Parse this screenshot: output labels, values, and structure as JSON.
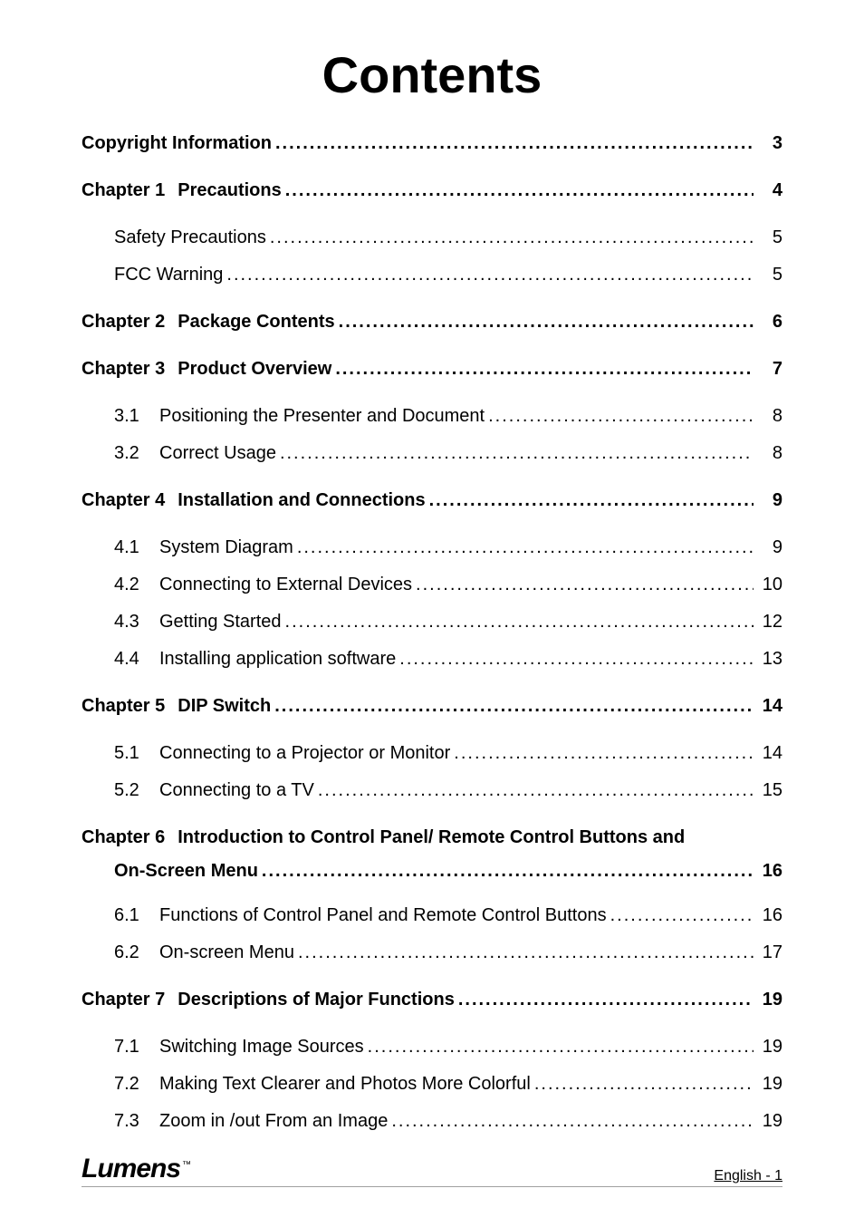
{
  "title": "Contents",
  "footer": {
    "logo": "Lumens",
    "trademark": "™",
    "page_label": "English - 1"
  },
  "typography": {
    "title_fontsize": 56,
    "body_fontsize": 20,
    "logo_fontsize": 30
  },
  "colors": {
    "background": "#ffffff",
    "text": "#000000",
    "rule": "#a0a0a0"
  },
  "toc": [
    {
      "level": 0,
      "bold": true,
      "num": "",
      "label": "Copyright Information",
      "page": "3"
    },
    {
      "level": 0,
      "bold": true,
      "num": "Chapter 1",
      "label": "Precautions",
      "page": "4",
      "grp": true
    },
    {
      "level": 1,
      "bold": false,
      "num": "",
      "label": "Safety Precautions",
      "page": "5",
      "grp": true
    },
    {
      "level": 1,
      "bold": false,
      "num": "",
      "label": "FCC Warning",
      "page": "5"
    },
    {
      "level": 0,
      "bold": true,
      "num": "Chapter 2",
      "label": "Package Contents",
      "page": "6",
      "grp": true
    },
    {
      "level": 0,
      "bold": true,
      "num": "Chapter 3",
      "label": "Product Overview",
      "page": "7",
      "grp": true
    },
    {
      "level": 2,
      "bold": false,
      "num": "3.1",
      "label": "Positioning the Presenter and Document",
      "page": "8",
      "grp": true
    },
    {
      "level": 2,
      "bold": false,
      "num": "3.2",
      "label": "Correct Usage",
      "page": "8"
    },
    {
      "level": 0,
      "bold": true,
      "num": "Chapter 4",
      "label": "Installation and Connections",
      "page": "9",
      "grp": true
    },
    {
      "level": 2,
      "bold": false,
      "num": "4.1",
      "label": "System Diagram",
      "page": "9",
      "grp": true
    },
    {
      "level": 2,
      "bold": false,
      "num": "4.2",
      "label": "Connecting to External Devices",
      "page": "10"
    },
    {
      "level": 2,
      "bold": false,
      "num": "4.3",
      "label": "Getting Started",
      "page": "12"
    },
    {
      "level": 2,
      "bold": false,
      "num": "4.4",
      "label": "Installing application software",
      "page": "13"
    },
    {
      "level": 0,
      "bold": true,
      "num": "Chapter 5",
      "label": "DIP Switch",
      "page": "14",
      "grp": true
    },
    {
      "level": 2,
      "bold": false,
      "num": "5.1",
      "label": "Connecting to a Projector or Monitor",
      "page": "14",
      "grp": true
    },
    {
      "level": 2,
      "bold": false,
      "num": "5.2",
      "label": "Connecting to a TV",
      "page": "15"
    },
    {
      "level": 0,
      "bold": true,
      "num": "Chapter 6",
      "label": "Introduction to Control Panel/ Remote Control Buttons and",
      "page": "",
      "grp": true,
      "no_leader": true
    },
    {
      "level": -1,
      "bold": true,
      "num": "",
      "label": "On-Screen Menu",
      "page": "16",
      "cont": true
    },
    {
      "level": 2,
      "bold": false,
      "num": "6.1",
      "label": "Functions of Control Panel and Remote Control Buttons",
      "page": "16",
      "grp": true
    },
    {
      "level": 2,
      "bold": false,
      "num": "6.2",
      "label": "On-screen Menu",
      "page": "17"
    },
    {
      "level": 0,
      "bold": true,
      "num": "Chapter 7",
      "label": "Descriptions of Major Functions",
      "page": "19",
      "grp": true
    },
    {
      "level": 2,
      "bold": false,
      "num": "7.1",
      "label": "Switching Image Sources",
      "page": "19",
      "grp": true
    },
    {
      "level": 2,
      "bold": false,
      "num": "7.2",
      "label": "Making Text Clearer and Photos More Colorful",
      "page": "19"
    },
    {
      "level": 2,
      "bold": false,
      "num": "7.3",
      "label": "Zoom in /out From an Image",
      "page": "19"
    }
  ]
}
